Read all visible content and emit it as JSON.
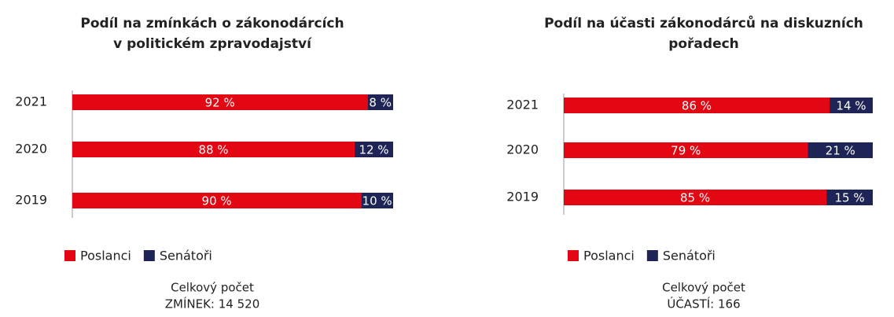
{
  "chart_data": [
    {
      "type": "stacked_barh",
      "title": [
        "Podíl na zmínkách o zákonodárcích",
        "v politickém zpravodajství"
      ],
      "categories": [
        "2021",
        "2020",
        "2019"
      ],
      "series": [
        {
          "name": "Poslanci",
          "color": "#e30613",
          "values": [
            92,
            88,
            90
          ],
          "value_labels": [
            "92 %",
            "88 %",
            "90 %"
          ]
        },
        {
          "name": "Senátoři",
          "color": "#1f2456",
          "values": [
            8,
            12,
            10
          ],
          "value_labels": [
            "8 %",
            "12 %",
            "10 %"
          ]
        }
      ],
      "xlim": [
        0,
        100
      ],
      "note": [
        "Celkový počet",
        "ZMÍNEK: 14 520"
      ]
    },
    {
      "type": "stacked_barh",
      "title": [
        "Podíl na účasti zákonodárců na diskuzních",
        "pořadech"
      ],
      "categories": [
        "2021",
        "2020",
        "2019"
      ],
      "series": [
        {
          "name": "Poslanci",
          "color": "#e30613",
          "values": [
            86,
            79,
            85
          ],
          "value_labels": [
            "86 %",
            "79 %",
            "85 %"
          ]
        },
        {
          "name": "Senátoři",
          "color": "#1f2456",
          "values": [
            14,
            21,
            15
          ],
          "value_labels": [
            "14 %",
            "21 %",
            "15 %"
          ]
        }
      ],
      "xlim": [
        0,
        100
      ],
      "note": [
        "Celkový počet",
        "ÚČASTÍ: 166"
      ]
    }
  ]
}
